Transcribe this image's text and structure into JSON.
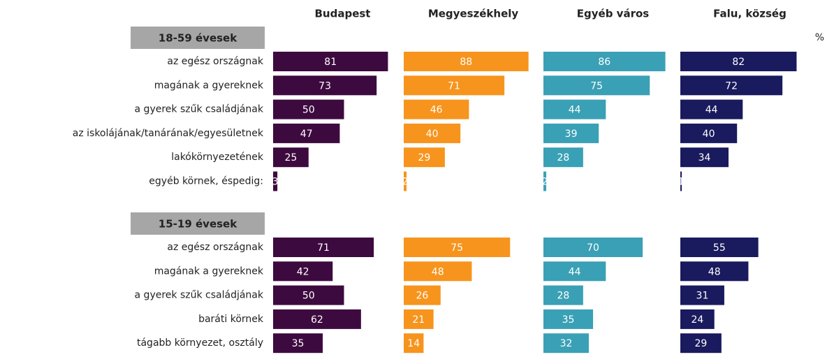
{
  "chart_data": {
    "type": "bar",
    "unit": "%",
    "xlim": [
      0,
      100
    ],
    "series": [
      {
        "name": "Budapest",
        "color": "#3d0a3f"
      },
      {
        "name": "Megyeszékhely",
        "color": "#f7941d"
      },
      {
        "name": "Egyéb város",
        "color": "#3aa0b5"
      },
      {
        "name": "Falu, község",
        "color": "#1a1a5e"
      }
    ],
    "groups": [
      {
        "title": "18-59 évesek",
        "categories": [
          "az egész országnak",
          "magának a gyereknek",
          "a gyerek szűk családjának",
          "az iskolájának/tanárának/egyesületnek",
          "lakókörnyezetének",
          "egyéb körnek, éspedig:"
        ],
        "values": [
          [
            81,
            73,
            50,
            47,
            25,
            3
          ],
          [
            88,
            71,
            46,
            40,
            29,
            2
          ],
          [
            86,
            75,
            44,
            39,
            28,
            2
          ],
          [
            82,
            72,
            44,
            40,
            34,
            1
          ]
        ]
      },
      {
        "title": "15-19 évesek",
        "categories": [
          "az egész országnak",
          "magának a gyereknek",
          "a gyerek szűk családjának",
          "baráti körnek",
          "tágabb környezet, osztály"
        ],
        "values": [
          [
            71,
            42,
            50,
            62,
            35
          ],
          [
            75,
            48,
            26,
            21,
            14
          ],
          [
            70,
            44,
            28,
            35,
            32
          ],
          [
            55,
            48,
            31,
            24,
            29
          ]
        ]
      }
    ]
  }
}
